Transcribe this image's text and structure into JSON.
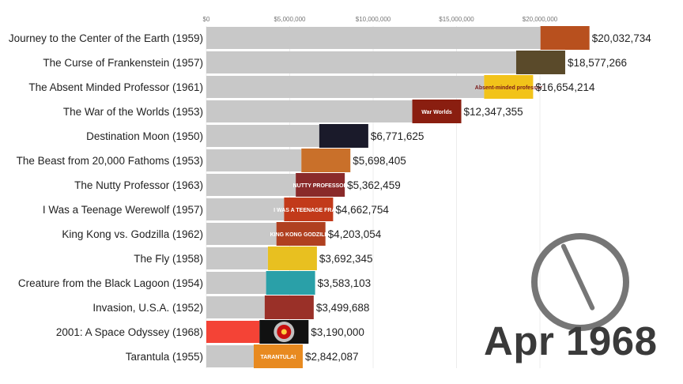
{
  "date_label": "Apr 1968",
  "chart_data": {
    "type": "bar",
    "orientation": "horizontal",
    "xlim": [
      0,
      20500000
    ],
    "x_ticks": [
      {
        "value": 0,
        "label": "$0"
      },
      {
        "value": 5000000,
        "label": "$5,000,000"
      },
      {
        "value": 10000000,
        "label": "$10,000,000"
      },
      {
        "value": 15000000,
        "label": "$15,000,000"
      },
      {
        "value": 20000000,
        "label": "$20,000,000"
      }
    ],
    "categories": [
      "Journey to the Center of the Earth (1959)",
      "The Curse of Frankenstein (1957)",
      "The Absent Minded Professor (1961)",
      "The War of the Worlds (1953)",
      "Destination Moon (1950)",
      "The Beast from 20,000 Fathoms (1953)",
      "The Nutty Professor (1963)",
      "I Was a Teenage Werewolf (1957)",
      "King Kong vs. Godzilla (1962)",
      "The Fly (1958)",
      "Creature from the Black Lagoon (1954)",
      "Invasion, U.S.A. (1952)",
      "2001: A Space Odyssey (1968)",
      "Tarantula (1955)"
    ],
    "values": [
      20032734,
      18577266,
      16654214,
      12347355,
      6771625,
      5698405,
      5362459,
      4662754,
      4203054,
      3692345,
      3583103,
      3499688,
      3190000,
      2842087
    ],
    "value_labels": [
      "$20,032,734",
      "$18,577,266",
      "$16,654,214",
      "$12,347,355",
      "$6,771,625",
      "$5,698,405",
      "$5,362,459",
      "$4,662,754",
      "$4,203,054",
      "$3,692,345",
      "$3,583,103",
      "$3,499,688",
      "$3,190,000",
      "$2,842,087"
    ],
    "poster_labels": [
      "",
      "",
      "Absent-minded professor",
      "War Worlds",
      "",
      "",
      "NUTTY PROFESSOR",
      "I WAS A TEENAGE FRANK",
      "KING KONG GODZILLA",
      "",
      "",
      "",
      "",
      "TARANTULA!"
    ],
    "bar_colors": [
      "#c8c8c8",
      "#c8c8c8",
      "#c8c8c8",
      "#c8c8c8",
      "#c8c8c8",
      "#c8c8c8",
      "#c8c8c8",
      "#c8c8c8",
      "#c8c8c8",
      "#c8c8c8",
      "#c8c8c8",
      "#c8c8c8",
      "#f44336",
      "#c8c8c8"
    ],
    "poster_colors": [
      "#b8501e",
      "#5a4a2a",
      "#f2c31a",
      "#8a1e10",
      "#1a1a2a",
      "#c9702a",
      "#8a2a2a",
      "#c23a1a",
      "#b04020",
      "#e8c020",
      "#2aa0a8",
      "#9a3028",
      "#111111",
      "#e88a20"
    ],
    "clock_face": {
      "hour": 4,
      "minute": 0
    }
  }
}
